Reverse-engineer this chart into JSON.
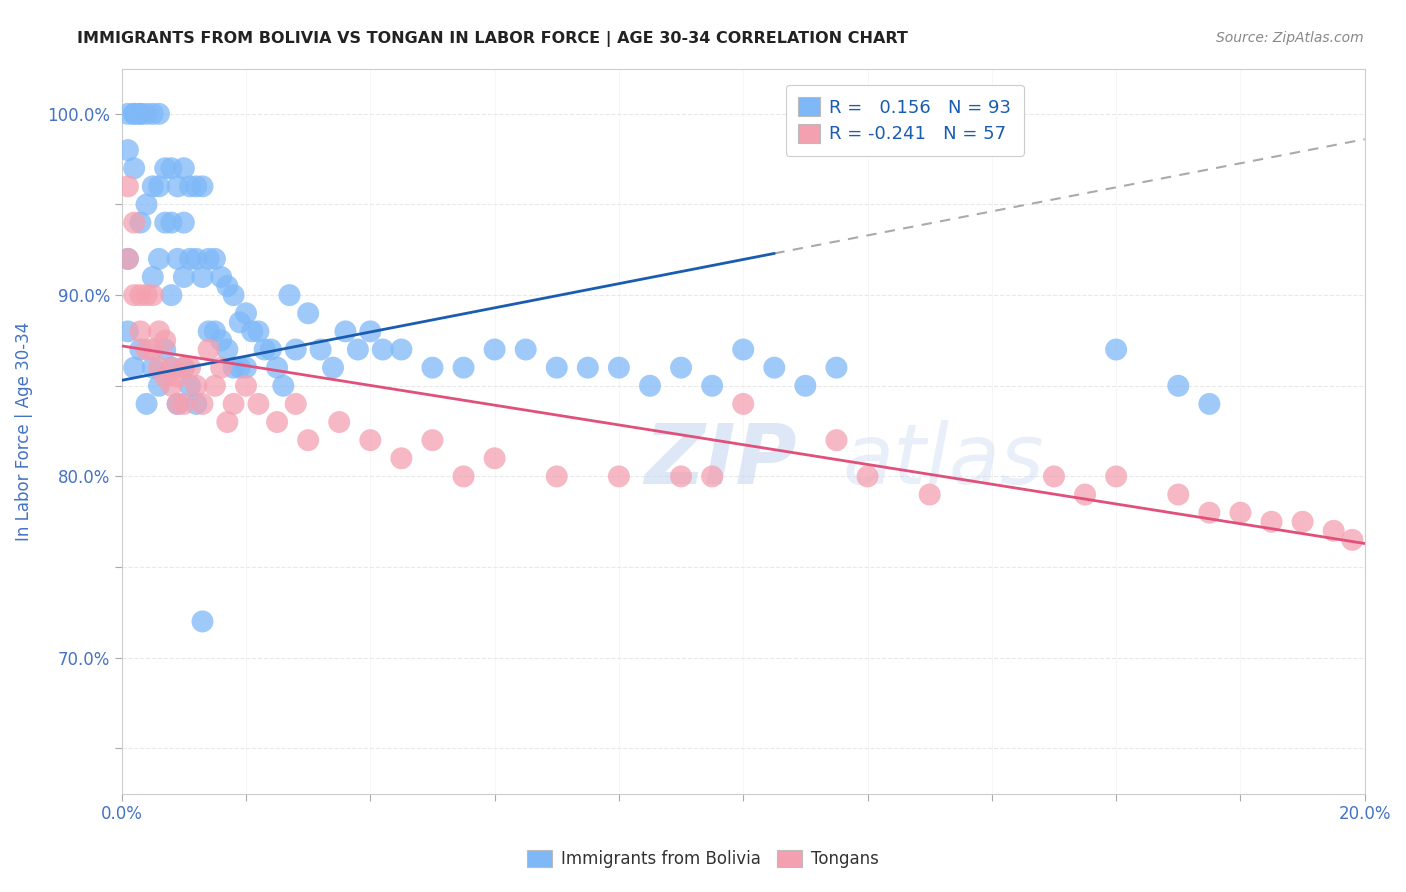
{
  "title": "IMMIGRANTS FROM BOLIVIA VS TONGAN IN LABOR FORCE | AGE 30-34 CORRELATION CHART",
  "source": "Source: ZipAtlas.com",
  "ylabel": "In Labor Force | Age 30-34",
  "xlim": [
    0.0,
    0.2
  ],
  "ylim": [
    0.625,
    1.025
  ],
  "bolivia_color": "#7EB8F7",
  "tongan_color": "#F4A0B0",
  "bolivia_line_color": "#1A5CB0",
  "tongan_line_color": "#E0507A",
  "dash_color": "#AAAAAA",
  "title_color": "#222222",
  "axis_label_color": "#4472C4",
  "tick_color": "#4472C4",
  "grid_color": "#E8E8E8",
  "background_color": "#FFFFFF",
  "bolivia_trend_x0": 0.0,
  "bolivia_trend_y0": 0.853,
  "bolivia_trend_x1": 0.105,
  "bolivia_trend_y1": 0.923,
  "dash_trend_x0": 0.105,
  "dash_trend_y0": 0.923,
  "dash_trend_x1": 0.2,
  "dash_trend_y1": 0.986,
  "tongan_trend_x0": 0.0,
  "tongan_trend_y0": 0.872,
  "tongan_trend_x1": 0.2,
  "tongan_trend_y1": 0.763,
  "bolivia_scatter_x": [
    0.001,
    0.001,
    0.001,
    0.002,
    0.002,
    0.002,
    0.003,
    0.003,
    0.003,
    0.004,
    0.004,
    0.005,
    0.005,
    0.005,
    0.006,
    0.006,
    0.006,
    0.007,
    0.007,
    0.008,
    0.008,
    0.008,
    0.009,
    0.009,
    0.01,
    0.01,
    0.01,
    0.011,
    0.011,
    0.012,
    0.012,
    0.013,
    0.013,
    0.014,
    0.014,
    0.015,
    0.015,
    0.016,
    0.016,
    0.017,
    0.017,
    0.018,
    0.018,
    0.019,
    0.019,
    0.02,
    0.02,
    0.021,
    0.022,
    0.023,
    0.024,
    0.025,
    0.026,
    0.027,
    0.028,
    0.03,
    0.032,
    0.034,
    0.036,
    0.038,
    0.04,
    0.042,
    0.045,
    0.05,
    0.055,
    0.06,
    0.065,
    0.07,
    0.075,
    0.08,
    0.085,
    0.09,
    0.095,
    0.1,
    0.105,
    0.11,
    0.115,
    0.16,
    0.17,
    0.175,
    0.001,
    0.002,
    0.003,
    0.004,
    0.005,
    0.006,
    0.007,
    0.008,
    0.009,
    0.01,
    0.011,
    0.012,
    0.013
  ],
  "bolivia_scatter_y": [
    1.0,
    0.98,
    0.92,
    1.0,
    1.0,
    0.97,
    1.0,
    1.0,
    0.94,
    1.0,
    0.95,
    1.0,
    0.96,
    0.91,
    1.0,
    0.96,
    0.92,
    0.97,
    0.94,
    0.97,
    0.94,
    0.9,
    0.96,
    0.92,
    0.97,
    0.94,
    0.91,
    0.96,
    0.92,
    0.96,
    0.92,
    0.96,
    0.91,
    0.92,
    0.88,
    0.92,
    0.88,
    0.91,
    0.875,
    0.905,
    0.87,
    0.9,
    0.86,
    0.885,
    0.86,
    0.89,
    0.86,
    0.88,
    0.88,
    0.87,
    0.87,
    0.86,
    0.85,
    0.9,
    0.87,
    0.89,
    0.87,
    0.86,
    0.88,
    0.87,
    0.88,
    0.87,
    0.87,
    0.86,
    0.86,
    0.87,
    0.87,
    0.86,
    0.86,
    0.86,
    0.85,
    0.86,
    0.85,
    0.87,
    0.86,
    0.85,
    0.86,
    0.87,
    0.85,
    0.84,
    0.88,
    0.86,
    0.87,
    0.84,
    0.86,
    0.85,
    0.87,
    0.86,
    0.84,
    0.86,
    0.85,
    0.84,
    0.72
  ],
  "tongan_scatter_x": [
    0.001,
    0.001,
    0.002,
    0.002,
    0.003,
    0.003,
    0.004,
    0.004,
    0.005,
    0.005,
    0.006,
    0.006,
    0.007,
    0.007,
    0.008,
    0.008,
    0.009,
    0.009,
    0.01,
    0.01,
    0.011,
    0.012,
    0.013,
    0.014,
    0.015,
    0.016,
    0.017,
    0.018,
    0.02,
    0.022,
    0.025,
    0.028,
    0.03,
    0.035,
    0.04,
    0.045,
    0.05,
    0.055,
    0.06,
    0.07,
    0.08,
    0.09,
    0.095,
    0.1,
    0.115,
    0.12,
    0.13,
    0.15,
    0.155,
    0.16,
    0.17,
    0.175,
    0.18,
    0.185,
    0.19,
    0.195,
    0.198
  ],
  "tongan_scatter_y": [
    0.96,
    0.92,
    0.94,
    0.9,
    0.9,
    0.88,
    0.9,
    0.87,
    0.9,
    0.87,
    0.88,
    0.86,
    0.875,
    0.855,
    0.86,
    0.85,
    0.855,
    0.84,
    0.86,
    0.84,
    0.86,
    0.85,
    0.84,
    0.87,
    0.85,
    0.86,
    0.83,
    0.84,
    0.85,
    0.84,
    0.83,
    0.84,
    0.82,
    0.83,
    0.82,
    0.81,
    0.82,
    0.8,
    0.81,
    0.8,
    0.8,
    0.8,
    0.8,
    0.84,
    0.82,
    0.8,
    0.79,
    0.8,
    0.79,
    0.8,
    0.79,
    0.78,
    0.78,
    0.775,
    0.775,
    0.77,
    0.765
  ]
}
